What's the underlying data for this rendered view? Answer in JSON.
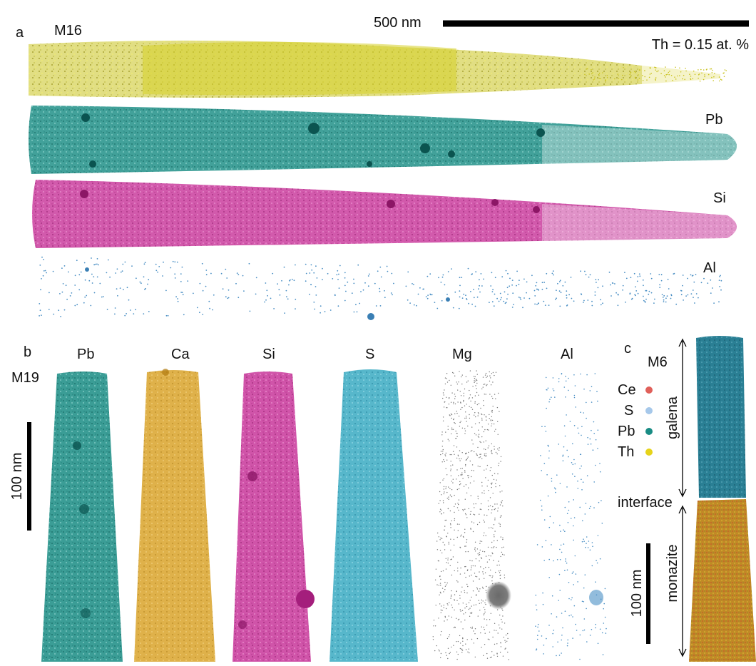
{
  "panel_a": {
    "letter": "a",
    "sample": "M16",
    "scalebar_label": "500 nm",
    "element_labels": [
      "Th = 0.15 at. %",
      "Pb",
      "Si",
      "Al"
    ]
  },
  "panel_b": {
    "letter": "b",
    "sample": "M19",
    "scalebar_label": "100 nm",
    "columns": [
      "Pb",
      "Ca",
      "Si",
      "S",
      "Mg",
      "Al"
    ]
  },
  "panel_c": {
    "letter": "c",
    "sample": "M6",
    "legend": [
      "Ce",
      "S",
      "Pb",
      "Th"
    ],
    "region_galena": "galena",
    "region_interface": "interface",
    "region_monazite": "monazite",
    "scalebar_label": "100 nm"
  },
  "colors": {
    "Th": "#c9c21e",
    "Pb": "#198c84",
    "Si": "#c8369a",
    "Al": "#4a8fc4",
    "Ca": "#dba836",
    "S": "#3aaac2",
    "Mg": "#777777",
    "Ce": "#e0605a",
    "S_legend": "#a6c8ea",
    "galena": "#2a7f94",
    "monazite": "#c08a26"
  }
}
